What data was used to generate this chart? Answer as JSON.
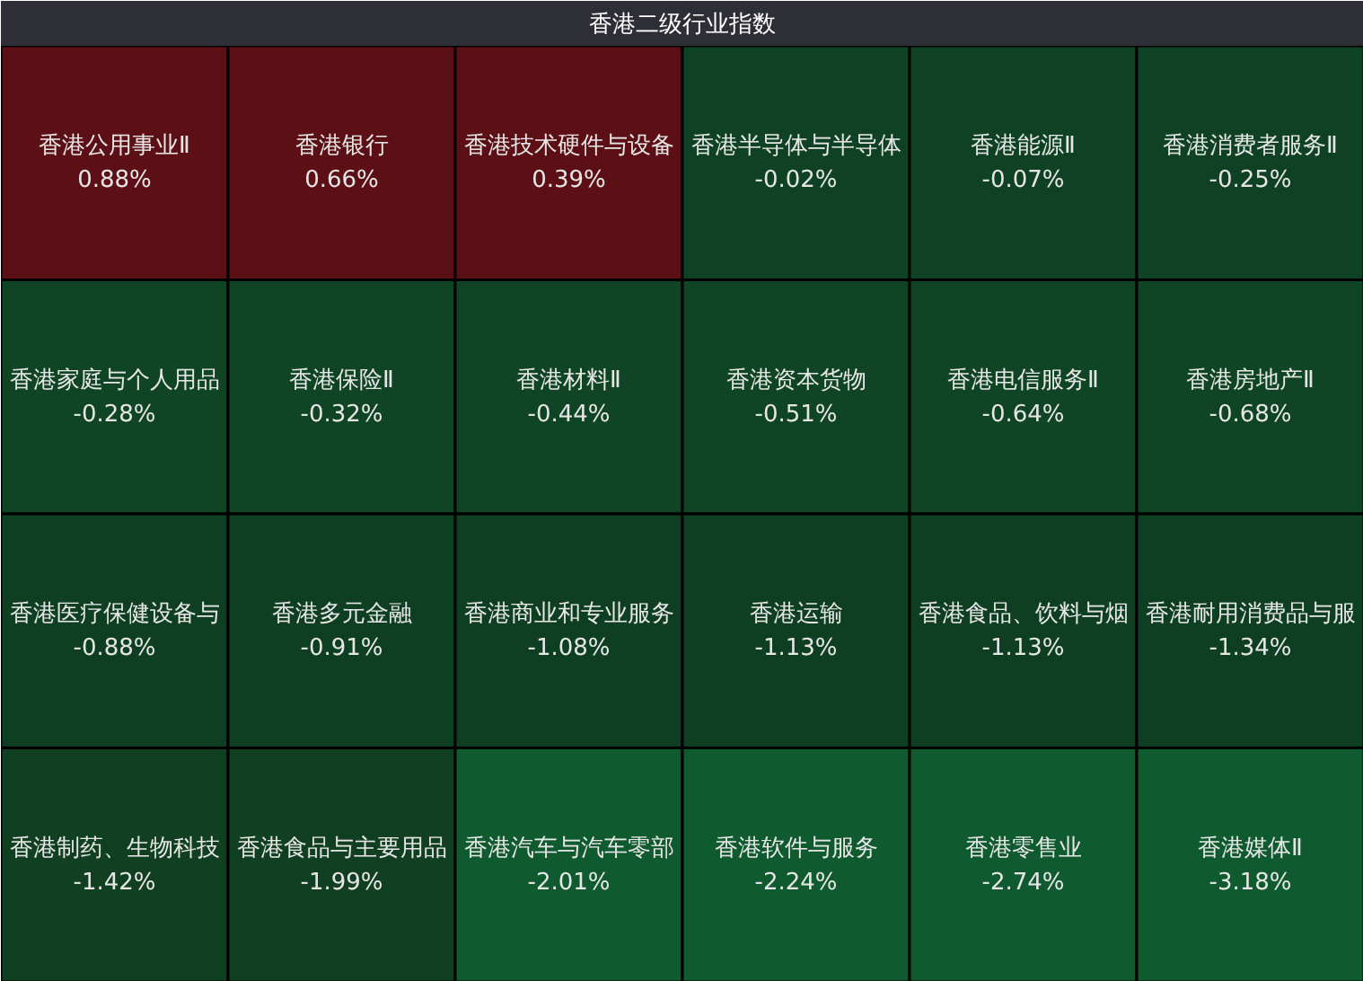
{
  "chart_data": {
    "type": "other",
    "title": "香港二级行业指数",
    "categories": [
      "香港公用事业Ⅱ",
      "香港银行",
      "香港技术硬件与设备",
      "香港半导体与半导体",
      "香港能源Ⅱ",
      "香港消费者服务Ⅱ",
      "香港家庭与个人用品",
      "香港保险Ⅱ",
      "香港材料Ⅱ",
      "香港资本货物",
      "香港电信服务Ⅱ",
      "香港房地产Ⅱ",
      "香港医疗保健设备与",
      "香港多元金融",
      "香港商业和专业服务",
      "香港运输",
      "香港食品、饮料与烟",
      "香港耐用消费品与服",
      "香港制药、生物科技",
      "香港食品与主要用品",
      "香港汽车与汽车零部",
      "香港软件与服务",
      "香港零售业",
      "香港媒体Ⅱ"
    ],
    "values": [
      0.88,
      0.66,
      0.39,
      -0.02,
      -0.07,
      -0.25,
      -0.28,
      -0.32,
      -0.44,
      -0.51,
      -0.64,
      -0.68,
      -0.88,
      -0.91,
      -1.08,
      -1.13,
      -1.13,
      -1.34,
      -1.42,
      -1.99,
      -2.01,
      -2.24,
      -2.74,
      -3.18
    ],
    "value_labels": [
      "0.88%",
      "0.66%",
      "0.39%",
      "-0.02%",
      "-0.07%",
      "-0.25%",
      "-0.28%",
      "-0.32%",
      "-0.44%",
      "-0.51%",
      "-0.64%",
      "-0.68%",
      "-0.88%",
      "-0.91%",
      "-1.08%",
      "-1.13%",
      "-1.13%",
      "-1.34%",
      "-1.42%",
      "-1.99%",
      "-2.01%",
      "-2.24%",
      "-2.74%",
      "-3.18%"
    ],
    "colors": [
      "#5c1016",
      "#5c1016",
      "#5c1016",
      "#0f4224",
      "#0f4224",
      "#0f4224",
      "#0f4424",
      "#0f4424",
      "#0f4424",
      "#0f4424",
      "#0f4424",
      "#0f4424",
      "#0f3f22",
      "#0f3f22",
      "#0f3f22",
      "#0f3f22",
      "#0f3f22",
      "#0f3f22",
      "#113f21",
      "#113f21",
      "#0f5a2e",
      "#0f5a2e",
      "#0f5a2e",
      "#0f5a2e"
    ]
  }
}
